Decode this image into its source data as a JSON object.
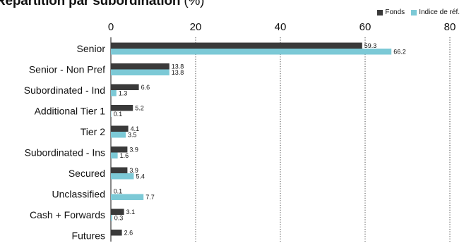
{
  "header": {
    "title": "Répartition par subordination",
    "unit": "(%)"
  },
  "colors": {
    "fonds": "#3a3a3a",
    "indice": "#7cc9d6"
  },
  "chart_data": {
    "type": "bar",
    "orientation": "horizontal",
    "title": "Répartition par subordination (%)",
    "categories": [
      "Senior",
      "Senior - Non Pref",
      "Subordinated - Ind",
      "Additional Tier 1",
      "Tier 2",
      "Subordinated - Ins",
      "Secured",
      "Unclassified",
      "Cash + Forwards",
      "Futures"
    ],
    "series": [
      {
        "name": "Fonds",
        "values": [
          59.3,
          13.8,
          6.6,
          5.2,
          4.1,
          3.9,
          3.9,
          0.1,
          3.1,
          2.6
        ]
      },
      {
        "name": "Indice de réf.",
        "values": [
          66.2,
          13.8,
          1.3,
          0.1,
          3.5,
          1.6,
          5.4,
          7.7,
          0.3,
          null
        ]
      }
    ],
    "xlim": [
      0,
      80
    ],
    "xticks": [
      "0",
      "20",
      "40",
      "60",
      "80"
    ],
    "grid": "vertical dotted",
    "legend_position": "top-right"
  }
}
